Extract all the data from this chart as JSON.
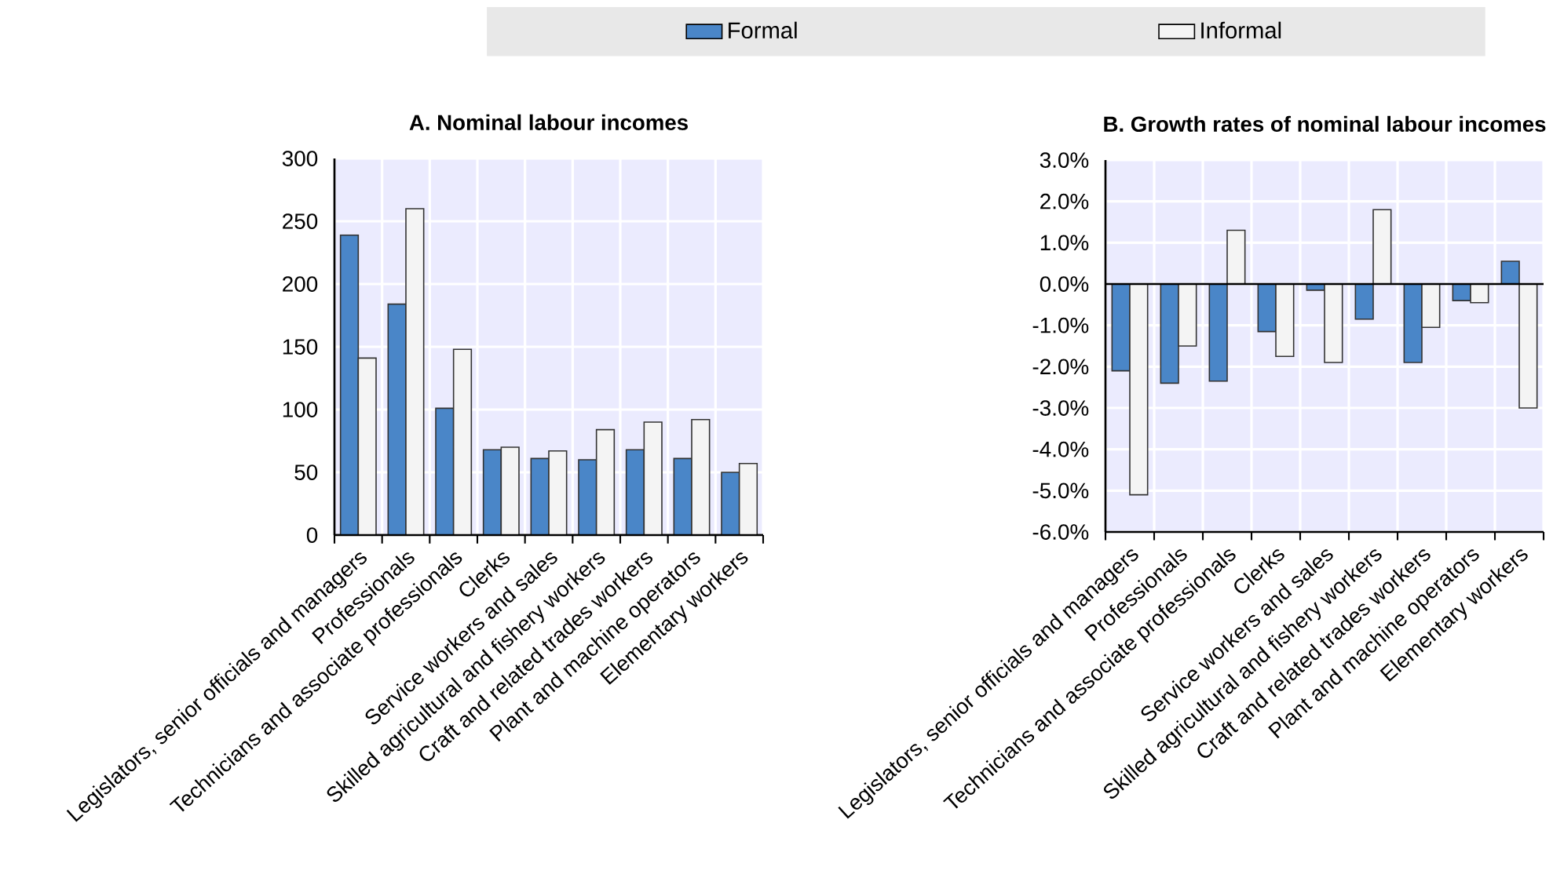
{
  "chart_data": [
    {
      "type": "bar",
      "title": "A. Nominal labour incomes",
      "categories": [
        "Legislators, senior officials and managers",
        "Professionals",
        "Technicians and associate professionals",
        "Clerks",
        "Service workers and sales",
        "Skilled agricultural and fishery workers",
        "Craft and related trades workers",
        "Plant and machine operators",
        "Elementary workers"
      ],
      "series": [
        {
          "name": "Formal",
          "color": "#4a86c8",
          "values": [
            239,
            184,
            101,
            68,
            61,
            60,
            68,
            61,
            50
          ]
        },
        {
          "name": "Informal",
          "color": "#f4f4f4",
          "values": [
            141,
            260,
            148,
            70,
            67,
            84,
            90,
            92,
            57
          ]
        }
      ],
      "ylim": [
        0,
        300
      ],
      "yticks": [
        0,
        50,
        100,
        150,
        200,
        250,
        300
      ],
      "grid": true,
      "legend": "top"
    },
    {
      "type": "bar",
      "title": "B. Growth rates of nominal labour incomes",
      "categories": [
        "Legislators, senior officials and managers",
        "Professionals",
        "Technicians and associate professionals",
        "Clerks",
        "Service workers and sales",
        "Skilled agricultural and fishery workers",
        "Craft and related trades workers",
        "Plant and machine operators",
        "Elementary workers"
      ],
      "series": [
        {
          "color": "#4a86c8",
          "values": [
            -2.1,
            -2.4,
            -2.35,
            -1.15,
            -0.15,
            -0.85,
            -1.9,
            -0.4,
            0.55
          ]
        },
        {
          "color": "#f4f4f4",
          "values": [
            -5.1,
            -1.5,
            1.3,
            -1.75,
            -1.9,
            1.8,
            -1.05,
            -0.45,
            -3.0
          ]
        }
      ],
      "ylim": [
        -6,
        3
      ],
      "yticks": [
        {
          "value": -6,
          "label": "-6.0%"
        },
        {
          "value": -5,
          "label": "-5.0%"
        },
        {
          "value": -4,
          "label": "-4.0%"
        },
        {
          "value": -3,
          "label": "-3.0%"
        },
        {
          "value": -2,
          "label": "-2.0%"
        },
        {
          "value": -1,
          "label": "-1.0%"
        },
        {
          "value": 0,
          "label": "0.0%"
        },
        {
          "value": 1,
          "label": "1.0%"
        },
        {
          "value": 2,
          "label": "2.0%"
        },
        {
          "value": 3,
          "label": "3.0%"
        }
      ],
      "grid": true
    }
  ]
}
